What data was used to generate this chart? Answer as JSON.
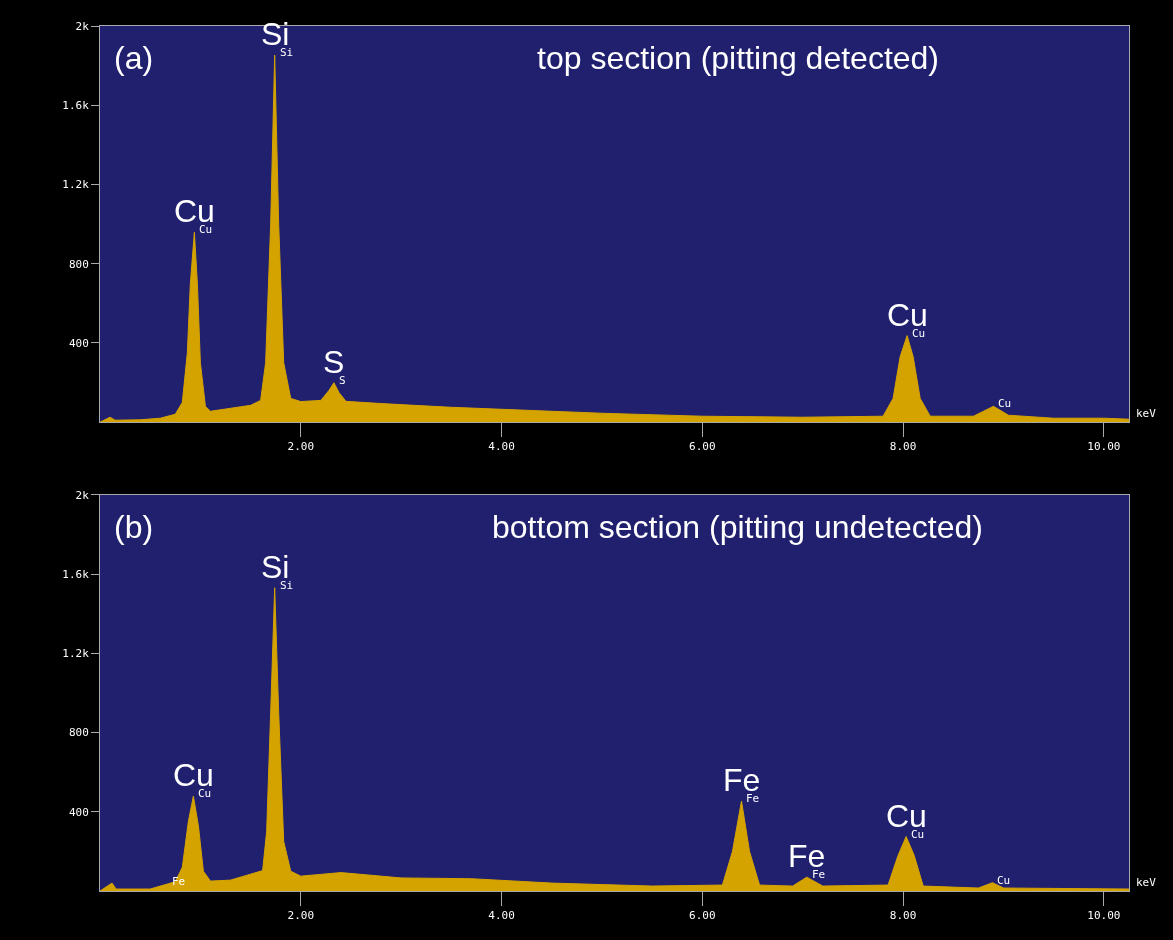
{
  "chart_data": [
    {
      "type": "area",
      "title": "top section (pitting detected)",
      "xlabel": "keV",
      "color": "#d4a300",
      "x": [
        0.0,
        0.1,
        0.15,
        0.4,
        0.6,
        0.75,
        0.82,
        0.87,
        0.9,
        0.94,
        0.97,
        1.0,
        1.05,
        1.1,
        1.3,
        1.5,
        1.6,
        1.65,
        1.7,
        1.74,
        1.78,
        1.83,
        1.9,
        2.0,
        2.2,
        2.28,
        2.33,
        2.38,
        2.45,
        2.8,
        3.5,
        4.0,
        5.0,
        6.0,
        7.0,
        7.8,
        7.9,
        7.97,
        8.04,
        8.1,
        8.17,
        8.27,
        8.7,
        8.9,
        9.05,
        9.5,
        10.0,
        10.25
      ],
      "values": [
        0,
        25,
        10,
        12,
        20,
        40,
        100,
        350,
        700,
        959,
        700,
        300,
        80,
        55,
        70,
        85,
        110,
        300,
        1000,
        1853,
        1000,
        300,
        120,
        104,
        110,
        160,
        199,
        150,
        105,
        94,
        75,
        65,
        45,
        30,
        25,
        30,
        120,
        330,
        437,
        330,
        120,
        30,
        30,
        80,
        35,
        20,
        20,
        15
      ],
      "xlim": [
        0,
        10.25
      ],
      "ylim": [
        0,
        2000
      ],
      "xticks": [
        {
          "value": 2,
          "label": "2.00"
        },
        {
          "value": 4,
          "label": "4.00"
        },
        {
          "value": 6,
          "label": "6.00"
        },
        {
          "value": 8,
          "label": "8.00"
        },
        {
          "value": 10,
          "label": "10.00"
        }
      ],
      "yticks": [
        400,
        800,
        {
          "value": 1200,
          "label": "1.2k"
        },
        {
          "value": 1600,
          "label": "1.6k"
        },
        {
          "value": 2000,
          "label": "2k"
        }
      ],
      "annotations": [
        "(a)",
        {
          "text": "Cu",
          "x": 0.94,
          "y": 959
        },
        {
          "text": "Si",
          "x": 1.74,
          "y": 1853
        },
        {
          "text": "S",
          "x": 2.33,
          "y": 199
        },
        {
          "text": "Cu",
          "x": 8.04,
          "y": 437
        },
        {
          "text": "Cu",
          "x": 0.94,
          "y": 959
        },
        {
          "text": "Si",
          "x": 1.74,
          "y": 1853
        },
        {
          "text": "S",
          "x": 2.33,
          "y": 199
        },
        {
          "text": "Cu",
          "x": 8.04,
          "y": 437
        },
        {
          "text": "Cu",
          "x": 8.9,
          "y": 80
        }
      ]
    },
    {
      "type": "area",
      "title": "bottom section (pitting undetected)",
      "xlabel": "keV",
      "color": "#d4a300",
      "x": [
        0.0,
        0.12,
        0.16,
        0.5,
        0.67,
        0.75,
        0.82,
        0.88,
        0.93,
        0.98,
        1.03,
        1.1,
        1.3,
        1.5,
        1.62,
        1.66,
        1.7,
        1.74,
        1.78,
        1.83,
        1.9,
        2.0,
        2.4,
        3.0,
        3.7,
        4.5,
        5.5,
        6.2,
        6.3,
        6.39,
        6.47,
        6.57,
        6.9,
        7.04,
        7.2,
        7.85,
        7.95,
        8.03,
        8.11,
        8.2,
        8.75,
        8.89,
        9.0,
        10.25
      ],
      "values": [
        0,
        40,
        10,
        10,
        35,
        47,
        120,
        350,
        479,
        330,
        100,
        50,
        55,
        85,
        103,
        300,
        900,
        1531,
        900,
        250,
        100,
        75,
        93,
        66,
        62,
        40,
        25,
        30,
        200,
        454,
        200,
        30,
        25,
        70,
        25,
        30,
        180,
        275,
        180,
        25,
        15,
        42,
        15,
        10
      ],
      "xlim": [
        0,
        10.25
      ],
      "ylim": [
        0,
        2000
      ],
      "xticks": [
        {
          "value": 2,
          "label": "2.00"
        },
        {
          "value": 4,
          "label": "4.00"
        },
        {
          "value": 6,
          "label": "6.00"
        },
        {
          "value": 8,
          "label": "8.00"
        },
        {
          "value": 10,
          "label": "10.00"
        }
      ],
      "yticks": [
        400,
        800,
        {
          "value": 1200,
          "label": "1.2k"
        },
        {
          "value": 1600,
          "label": "1.6k"
        },
        {
          "value": 2000,
          "label": "2k"
        }
      ],
      "annotations": [
        "(b)",
        {
          "text": "Cu",
          "x": 0.93,
          "y": 479
        },
        {
          "text": "Si",
          "x": 1.74,
          "y": 1531
        },
        {
          "text": "Fe",
          "x": 6.39,
          "y": 454
        },
        {
          "text": "Fe",
          "x": 7.04,
          "y": 70
        },
        {
          "text": "Cu",
          "x": 8.03,
          "y": 275
        },
        {
          "text": "Fe",
          "x": 0.67,
          "y": 35
        },
        {
          "text": "Cu",
          "x": 0.93,
          "y": 479
        },
        {
          "text": "Si",
          "x": 1.74,
          "y": 1531
        },
        {
          "text": "Fe",
          "x": 6.39,
          "y": 454
        },
        {
          "text": "Fe",
          "x": 7.04,
          "y": 70
        },
        {
          "text": "Cu",
          "x": 8.03,
          "y": 275
        },
        {
          "text": "Cu",
          "x": 8.89,
          "y": 42
        }
      ]
    }
  ]
}
